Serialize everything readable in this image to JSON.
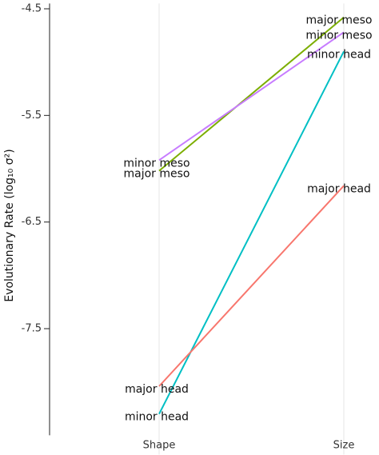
{
  "chart_data": {
    "type": "line",
    "y_label": "Evolutionary Rate (log₁₀ σ²)",
    "categories": [
      "Shape",
      "Size"
    ],
    "series": [
      {
        "name": "major meso",
        "color": "#7cae00",
        "values": [
          -6.02,
          -4.58
        ]
      },
      {
        "name": "minor meso",
        "color": "#c77cff",
        "values": [
          -5.92,
          -4.72
        ]
      },
      {
        "name": "minor head",
        "color": "#00bfc4",
        "values": [
          -8.3,
          -4.9
        ]
      },
      {
        "name": "major head",
        "color": "#f8766d",
        "values": [
          -8.04,
          -6.16
        ]
      }
    ],
    "ylim": [
      -8.5,
      -4.45
    ],
    "yticks": [
      -4.5,
      -5.5,
      -6.5,
      -7.5
    ],
    "grid": true
  }
}
